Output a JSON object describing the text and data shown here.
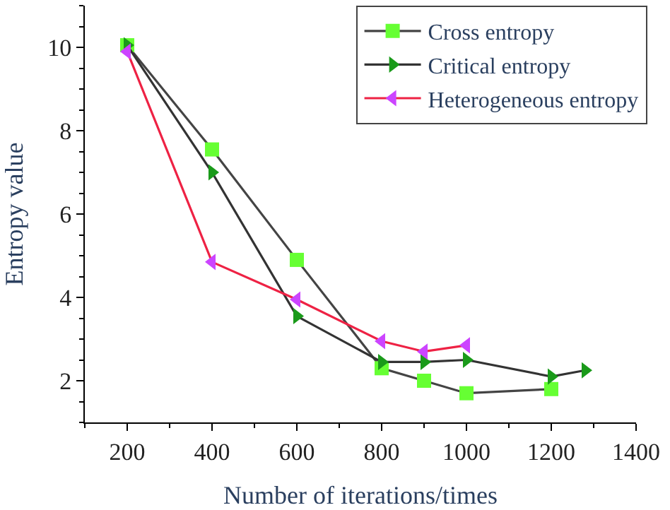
{
  "chart_data": {
    "type": "line",
    "xlabel": "Number of iterations/times",
    "ylabel": "Entropy value",
    "xlim": [
      100,
      1400
    ],
    "xticks": [
      200,
      400,
      600,
      800,
      1000,
      1200,
      1400
    ],
    "ylim": [
      1,
      11
    ],
    "yticks": [
      2,
      4,
      6,
      8,
      10
    ],
    "legend": "top right",
    "series": [
      {
        "name": "Cross entropy",
        "color": "#444444",
        "colors": [
          "#66ff33",
          "#66ff33",
          "#66ff33",
          "#66ff33",
          "#66ff33",
          "#66ff33",
          "#66ff33"
        ],
        "marker": "square",
        "x": [
          200,
          400,
          600,
          800,
          900,
          1000,
          1200
        ],
        "values": [
          10.05,
          7.55,
          4.9,
          2.3,
          2.0,
          1.7,
          1.8
        ]
      },
      {
        "name": "Critical entropy",
        "color": "#333333",
        "colors": [
          "#1a9a1a",
          "#1a9a1a",
          "#1a9a1a",
          "#1a9a1a",
          "#1a9a1a",
          "#1a9a1a",
          "#1a9a1a",
          "#1a9a1a"
        ],
        "marker": "triangle-right",
        "x": [
          200,
          400,
          600,
          800,
          900,
          1000,
          1200,
          1280
        ],
        "values": [
          10.05,
          7.0,
          3.55,
          2.45,
          2.45,
          2.5,
          2.1,
          2.25
        ]
      },
      {
        "name": "Heterogeneous entropy",
        "color": "#ee2244",
        "colors": [
          "#cc44ff",
          "#cc44ff",
          "#cc44ff",
          "#cc44ff",
          "#cc44ff",
          "#cc44ff"
        ],
        "marker": "triangle-left",
        "x": [
          200,
          400,
          600,
          800,
          900,
          1000
        ],
        "values": [
          9.9,
          4.85,
          3.95,
          2.95,
          2.7,
          2.85
        ]
      }
    ]
  }
}
